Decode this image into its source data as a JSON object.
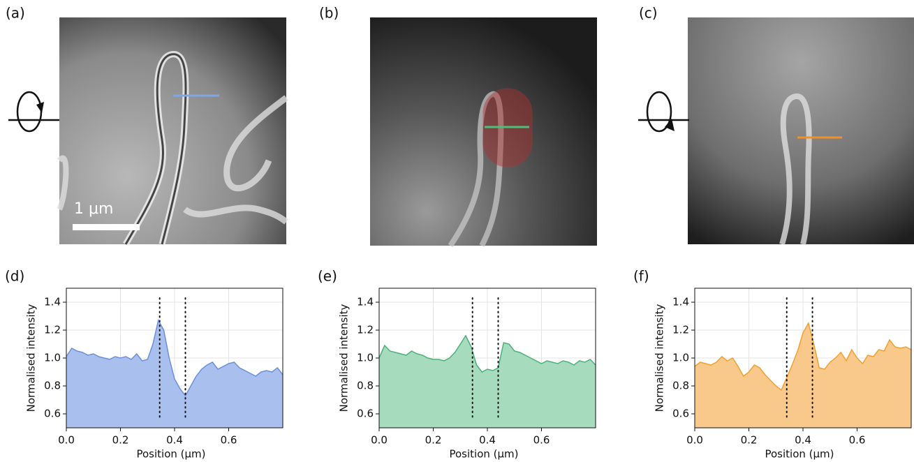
{
  "images": [
    {
      "label": "(a)",
      "scale_bar": "1 μm"
    },
    {
      "label": "(b)"
    },
    {
      "label": "(c)"
    }
  ],
  "chart_data": [
    {
      "type": "area",
      "panel": "(d)",
      "x_label": "Position (μm)",
      "y_label": "Normalised intensity",
      "x": [
        0,
        0.02,
        0.04,
        0.06,
        0.08,
        0.1,
        0.12,
        0.14,
        0.16,
        0.18,
        0.2,
        0.22,
        0.24,
        0.26,
        0.28,
        0.3,
        0.32,
        0.34,
        0.36,
        0.38,
        0.4,
        0.42,
        0.44,
        0.46,
        0.48,
        0.5,
        0.52,
        0.54,
        0.56,
        0.58,
        0.6,
        0.62,
        0.64,
        0.66,
        0.68,
        0.7,
        0.72,
        0.74,
        0.76,
        0.78,
        0.8
      ],
      "series": [
        {
          "color": "#6b8fd8",
          "fill": "#a9c0ef",
          "values": [
            1.01,
            1.07,
            1.05,
            1.04,
            1.02,
            1.03,
            1.01,
            1.0,
            0.99,
            1.01,
            1.0,
            1.01,
            0.99,
            1.03,
            0.98,
            0.99,
            1.1,
            1.27,
            1.2,
            1.0,
            0.85,
            0.78,
            0.73,
            0.8,
            0.87,
            0.92,
            0.95,
            0.97,
            0.92,
            0.94,
            0.96,
            0.97,
            0.93,
            0.91,
            0.89,
            0.87,
            0.9,
            0.91,
            0.9,
            0.93,
            0.88
          ]
        }
      ],
      "vlines": [
        0.345,
        0.44
      ],
      "xlim": [
        0,
        0.8
      ],
      "ylim": [
        0.5,
        1.5
      ],
      "xticks": [
        {
          "value": 0,
          "label": "0.0"
        },
        0.2,
        0.4,
        0.6
      ],
      "yticks": [
        0.6,
        0.8,
        {
          "value": 1,
          "label": "1.0"
        },
        1.2,
        1.4
      ],
      "grid": true
    },
    {
      "type": "area",
      "panel": "(e)",
      "x_label": "Position (μm)",
      "y_label": "Normalised intensity",
      "x": [
        0,
        0.02,
        0.04,
        0.06,
        0.08,
        0.1,
        0.12,
        0.14,
        0.16,
        0.18,
        0.2,
        0.22,
        0.24,
        0.26,
        0.28,
        0.3,
        0.32,
        0.34,
        0.36,
        0.38,
        0.4,
        0.42,
        0.44,
        0.46,
        0.48,
        0.5,
        0.52,
        0.54,
        0.56,
        0.58,
        0.6,
        0.62,
        0.64,
        0.66,
        0.68,
        0.7,
        0.72,
        0.74,
        0.76,
        0.78,
        0.8
      ],
      "series": [
        {
          "color": "#4cb07a",
          "fill": "#a6dbbd",
          "values": [
            1.0,
            1.09,
            1.05,
            1.04,
            1.03,
            1.02,
            1.05,
            1.03,
            1.02,
            1.0,
            0.99,
            0.99,
            0.98,
            1.0,
            1.04,
            1.1,
            1.16,
            1.08,
            0.95,
            0.9,
            0.92,
            0.91,
            0.93,
            1.11,
            1.1,
            1.05,
            1.04,
            1.02,
            1.0,
            0.98,
            0.96,
            0.98,
            0.97,
            0.96,
            0.98,
            0.97,
            0.95,
            0.98,
            0.97,
            0.99,
            0.95
          ]
        }
      ],
      "vlines": [
        0.345,
        0.44
      ],
      "xlim": [
        0,
        0.8
      ],
      "ylim": [
        0.5,
        1.5
      ],
      "xticks": [
        {
          "value": 0,
          "label": "0.0"
        },
        0.2,
        0.4,
        0.6
      ],
      "yticks": [
        0.6,
        0.8,
        {
          "value": 1,
          "label": "1.0"
        },
        1.2,
        1.4
      ],
      "grid": true
    },
    {
      "type": "area",
      "panel": "(f)",
      "x_label": "Position (μm)",
      "y_label": "Normalised intensity",
      "x": [
        0,
        0.02,
        0.04,
        0.06,
        0.08,
        0.1,
        0.12,
        0.14,
        0.16,
        0.18,
        0.2,
        0.22,
        0.24,
        0.26,
        0.28,
        0.3,
        0.32,
        0.34,
        0.36,
        0.38,
        0.4,
        0.42,
        0.44,
        0.46,
        0.48,
        0.5,
        0.52,
        0.54,
        0.56,
        0.58,
        0.6,
        0.62,
        0.64,
        0.66,
        0.68,
        0.7,
        0.72,
        0.74,
        0.76,
        0.78,
        0.8
      ],
      "series": [
        {
          "color": "#f0a030",
          "fill": "#f8c98a",
          "values": [
            0.94,
            0.97,
            0.96,
            0.95,
            0.97,
            1.01,
            0.98,
            1.0,
            0.94,
            0.87,
            0.9,
            0.95,
            0.93,
            0.88,
            0.84,
            0.8,
            0.77,
            0.86,
            0.95,
            1.05,
            1.18,
            1.25,
            1.1,
            0.93,
            0.92,
            0.97,
            1.0,
            1.04,
            0.98,
            1.06,
            1.0,
            0.96,
            1.02,
            1.01,
            1.06,
            1.05,
            1.13,
            1.08,
            1.07,
            1.08,
            1.06
          ]
        }
      ],
      "vlines": [
        0.34,
        0.435
      ],
      "xlim": [
        0,
        0.8
      ],
      "ylim": [
        0.5,
        1.5
      ],
      "xticks": [
        {
          "value": 0,
          "label": "0.0"
        },
        0.2,
        0.4,
        0.6
      ],
      "yticks": [
        0.6,
        0.8,
        {
          "value": 1,
          "label": "1.0"
        },
        1.2,
        1.4
      ],
      "grid": true
    }
  ]
}
